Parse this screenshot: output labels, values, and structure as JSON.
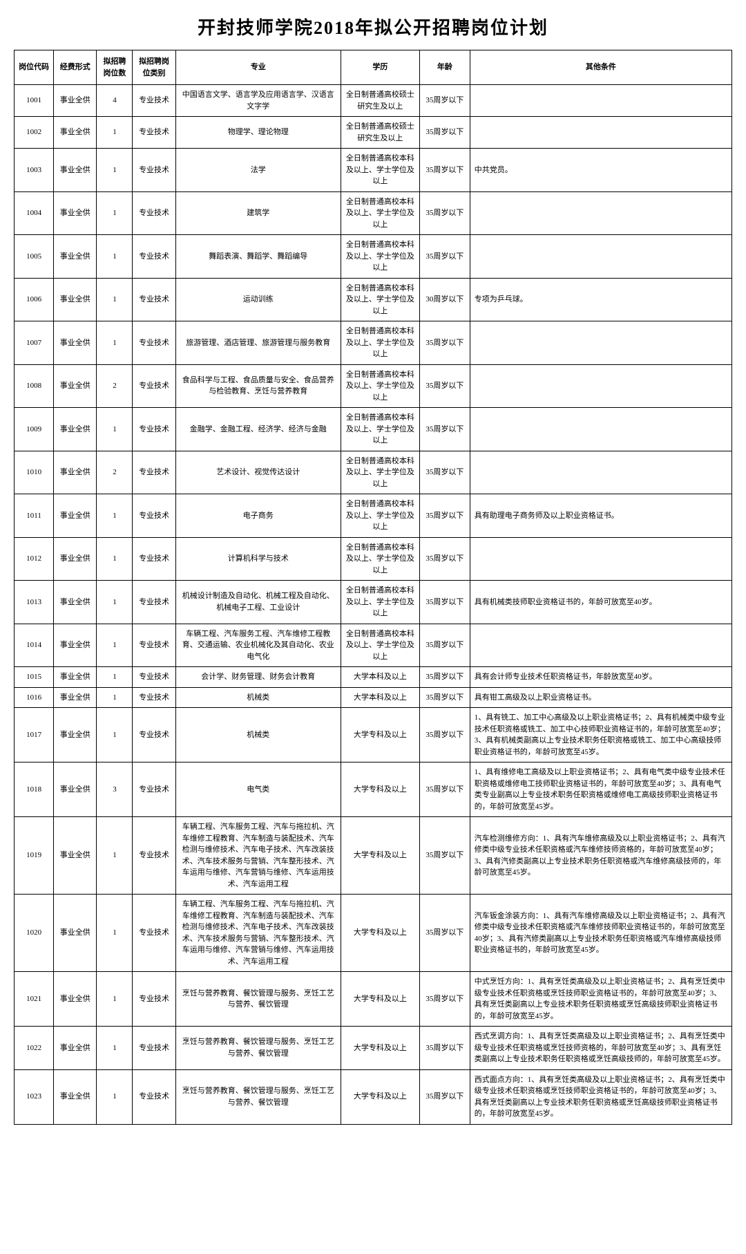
{
  "title": "开封技师学院2018年拟公开招聘岗位计划",
  "columns": [
    "岗位代码",
    "经费形式",
    "拟招聘岗位数",
    "拟招聘岗位类别",
    "专业",
    "学历",
    "年龄",
    "其他条件"
  ],
  "rows": [
    {
      "code": "1001",
      "fund": "事业全供",
      "count": "4",
      "cat": "专业技术",
      "major": "中国语言文学、语言学及应用语言学、汉语言文字学",
      "edu": "全日制普通高校硕士研究生及以上",
      "age": "35周岁以下",
      "other": ""
    },
    {
      "code": "1002",
      "fund": "事业全供",
      "count": "1",
      "cat": "专业技术",
      "major": "物理学、理论物理",
      "edu": "全日制普通高校硕士研究生及以上",
      "age": "35周岁以下",
      "other": ""
    },
    {
      "code": "1003",
      "fund": "事业全供",
      "count": "1",
      "cat": "专业技术",
      "major": "法学",
      "edu": "全日制普通高校本科及以上、学士学位及以上",
      "age": "35周岁以下",
      "other": "中共党员。"
    },
    {
      "code": "1004",
      "fund": "事业全供",
      "count": "1",
      "cat": "专业技术",
      "major": "建筑学",
      "edu": "全日制普通高校本科及以上、学士学位及以上",
      "age": "35周岁以下",
      "other": ""
    },
    {
      "code": "1005",
      "fund": "事业全供",
      "count": "1",
      "cat": "专业技术",
      "major": "舞蹈表演、舞蹈学、舞蹈编导",
      "edu": "全日制普通高校本科及以上、学士学位及以上",
      "age": "35周岁以下",
      "other": ""
    },
    {
      "code": "1006",
      "fund": "事业全供",
      "count": "1",
      "cat": "专业技术",
      "major": "运动训练",
      "edu": "全日制普通高校本科及以上、学士学位及以上",
      "age": "30周岁以下",
      "other": "专项为乒乓球。"
    },
    {
      "code": "1007",
      "fund": "事业全供",
      "count": "1",
      "cat": "专业技术",
      "major": "旅游管理、酒店管理、旅游管理与服务教育",
      "edu": "全日制普通高校本科及以上、学士学位及以上",
      "age": "35周岁以下",
      "other": ""
    },
    {
      "code": "1008",
      "fund": "事业全供",
      "count": "2",
      "cat": "专业技术",
      "major": "食品科学与工程、食品质量与安全、食品营养与检验教育、烹饪与营养教育",
      "edu": "全日制普通高校本科及以上、学士学位及以上",
      "age": "35周岁以下",
      "other": ""
    },
    {
      "code": "1009",
      "fund": "事业全供",
      "count": "1",
      "cat": "专业技术",
      "major": "金融学、金融工程、经济学、经济与金融",
      "edu": "全日制普通高校本科及以上、学士学位及以上",
      "age": "35周岁以下",
      "other": ""
    },
    {
      "code": "1010",
      "fund": "事业全供",
      "count": "2",
      "cat": "专业技术",
      "major": "艺术设计、视觉传达设计",
      "edu": "全日制普通高校本科及以上、学士学位及以上",
      "age": "35周岁以下",
      "other": ""
    },
    {
      "code": "1011",
      "fund": "事业全供",
      "count": "1",
      "cat": "专业技术",
      "major": "电子商务",
      "edu": "全日制普通高校本科及以上、学士学位及以上",
      "age": "35周岁以下",
      "other": "具有助理电子商务师及以上职业资格证书。"
    },
    {
      "code": "1012",
      "fund": "事业全供",
      "count": "1",
      "cat": "专业技术",
      "major": "计算机科学与技术",
      "edu": "全日制普通高校本科及以上、学士学位及以上",
      "age": "35周岁以下",
      "other": ""
    },
    {
      "code": "1013",
      "fund": "事业全供",
      "count": "1",
      "cat": "专业技术",
      "major": "机械设计制造及自动化、机械工程及自动化、机械电子工程、工业设计",
      "edu": "全日制普通高校本科及以上、学士学位及以上",
      "age": "35周岁以下",
      "other": "具有机械类技师职业资格证书的，年龄可放宽至40岁。"
    },
    {
      "code": "1014",
      "fund": "事业全供",
      "count": "1",
      "cat": "专业技术",
      "major": "车辆工程、汽车服务工程、汽车维修工程教育、交通运输、农业机械化及其自动化、农业电气化",
      "edu": "全日制普通高校本科及以上、学士学位及以上",
      "age": "35周岁以下",
      "other": ""
    },
    {
      "code": "1015",
      "fund": "事业全供",
      "count": "1",
      "cat": "专业技术",
      "major": "会计学、财务管理、财务会计教育",
      "edu": "大学本科及以上",
      "age": "35周岁以下",
      "other": "具有会计师专业技术任职资格证书，年龄放宽至40岁。"
    },
    {
      "code": "1016",
      "fund": "事业全供",
      "count": "1",
      "cat": "专业技术",
      "major": "机械类",
      "edu": "大学本科及以上",
      "age": "35周岁以下",
      "other": "具有钳工高级及以上职业资格证书。"
    },
    {
      "code": "1017",
      "fund": "事业全供",
      "count": "1",
      "cat": "专业技术",
      "major": "机械类",
      "edu": "大学专科及以上",
      "age": "35周岁以下",
      "other": "1、具有铣工、加工中心高级及以上职业资格证书；2、具有机械类中级专业技术任职资格或铣工、加工中心技师职业资格证书的，年龄可放宽至40岁；3、具有机械类副高以上专业技术职务任职资格或铣工、加工中心高级技师职业资格证书的，年龄可放宽至45岁。"
    },
    {
      "code": "1018",
      "fund": "事业全供",
      "count": "3",
      "cat": "专业技术",
      "major": "电气类",
      "edu": "大学专科及以上",
      "age": "35周岁以下",
      "other": "1、具有维修电工高级及以上职业资格证书；2、具有电气类中级专业技术任职资格或维修电工技师职业资格证书的，年龄可放宽至40岁；3、具有电气类专业副高以上专业技术职务任职资格或维修电工高级技师职业资格证书的，年龄可放宽至45岁。"
    },
    {
      "code": "1019",
      "fund": "事业全供",
      "count": "1",
      "cat": "专业技术",
      "major": "车辆工程、汽车服务工程、汽车与拖拉机、汽车维修工程教育、汽车制造与装配技术、汽车检测与维修技术、汽车电子技术、汽车改装技术、汽车技术服务与营销、汽车整形技术、汽车运用与维修、汽车营销与维修、汽车运用技术、汽车运用工程",
      "edu": "大学专科及以上",
      "age": "35周岁以下",
      "other": "汽车检测维修方向：1、具有汽车维修高级及以上职业资格证书；2、具有汽修类中级专业技术任职资格或汽车维修技师资格的，年龄可放宽至40岁；3、具有汽修类副高以上专业技术职务任职资格或汽车维修高级技师的，年龄可放宽至45岁。"
    },
    {
      "code": "1020",
      "fund": "事业全供",
      "count": "1",
      "cat": "专业技术",
      "major": "车辆工程、汽车服务工程、汽车与拖拉机、汽车维修工程教育、汽车制造与装配技术、汽车检测与维修技术、汽车电子技术、汽车改装技术、汽车技术服务与营销、汽车整形技术、汽车运用与维修、汽车营销与维修、汽车运用技术、汽车运用工程",
      "edu": "大学专科及以上",
      "age": "35周岁以下",
      "other": "汽车钣金涂装方向：1、具有汽车维修高级及以上职业资格证书；2、具有汽修类中级专业技术任职资格或汽车维修技师职业资格证书的，年龄可放宽至40岁；3、具有汽修类副高以上专业技术职务任职资格或汽车维修高级技师职业资格证书的，年龄可放宽至45岁。"
    },
    {
      "code": "1021",
      "fund": "事业全供",
      "count": "1",
      "cat": "专业技术",
      "major": "烹饪与营养教育、餐饮管理与服务、烹饪工艺与营养、餐饮管理",
      "edu": "大学专科及以上",
      "age": "35周岁以下",
      "other": "中式烹饪方向：1、具有烹饪类高级及以上职业资格证书；2、具有烹饪类中级专业技术任职资格或烹饪技师职业资格证书的，年龄可放宽至40岁；3、具有烹饪类副高以上专业技术职务任职资格或烹饪高级技师职业资格证书的，年龄可放宽至45岁。"
    },
    {
      "code": "1022",
      "fund": "事业全供",
      "count": "1",
      "cat": "专业技术",
      "major": "烹饪与营养教育、餐饮管理与服务、烹饪工艺与营养、餐饮管理",
      "edu": "大学专科及以上",
      "age": "35周岁以下",
      "other": "西式烹调方向：1、具有烹饪类高级及以上职业资格证书；2、具有烹饪类中级专业技术任职资格或烹饪技师资格的，年龄可放宽至40岁；3、具有烹饪类副高以上专业技术职务任职资格或烹饪高级技师的，年龄可放宽至45岁。"
    },
    {
      "code": "1023",
      "fund": "事业全供",
      "count": "1",
      "cat": "专业技术",
      "major": "烹饪与营养教育、餐饮管理与服务、烹饪工艺与营养、餐饮管理",
      "edu": "大学专科及以上",
      "age": "35周岁以下",
      "other": "西式面点方向：1、具有烹饪类高级及以上职业资格证书；2、具有烹饪类中级专业技术任职资格或烹饪技师职业资格证书的，年龄可放宽至40岁；3、具有烹饪类副高以上专业技术职务任职资格或烹饪高级技师职业资格证书的，年龄可放宽至45岁。"
    }
  ],
  "table": {
    "border_color": "#000000",
    "background_color": "#ffffff",
    "header_fontsize": 11,
    "cell_fontsize": 11,
    "title_fontsize": 26
  }
}
